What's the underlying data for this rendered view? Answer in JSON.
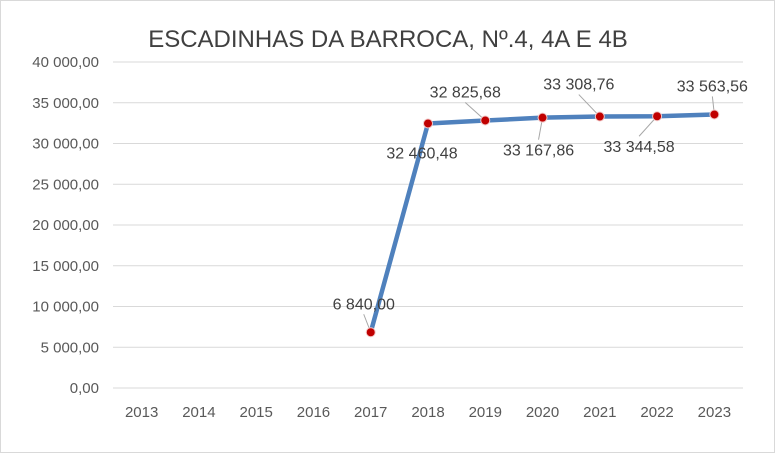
{
  "chart_data": {
    "type": "line",
    "title": "ESCADINHAS DA BARROCA, Nº.4, 4A E 4B",
    "xlabel": "",
    "ylabel": "",
    "ylim": [
      0,
      40000
    ],
    "ytick_values": [
      0,
      5000,
      10000,
      15000,
      20000,
      25000,
      30000,
      35000,
      40000
    ],
    "ytick_labels": [
      "0,00",
      "5 000,00",
      "10 000,00",
      "15 000,00",
      "20 000,00",
      "25 000,00",
      "30 000,00",
      "35 000,00",
      "40 000,00"
    ],
    "categories": [
      "2013",
      "2014",
      "2015",
      "2016",
      "2017",
      "2018",
      "2019",
      "2020",
      "2021",
      "2022",
      "2023"
    ],
    "series": [
      {
        "values": [
          null,
          null,
          null,
          null,
          6840.0,
          32460.48,
          32825.68,
          33167.86,
          33308.76,
          33344.58,
          33563.56
        ],
        "labels": [
          null,
          null,
          null,
          null,
          "6 840,00",
          "32 460,48",
          "32 825,68",
          "33 167,86",
          "33 308,76",
          "33 344,58",
          "33 563,56"
        ],
        "line_color": "#4f81bd",
        "marker_color": "#c00000"
      }
    ],
    "grid": true,
    "legend": "none"
  }
}
